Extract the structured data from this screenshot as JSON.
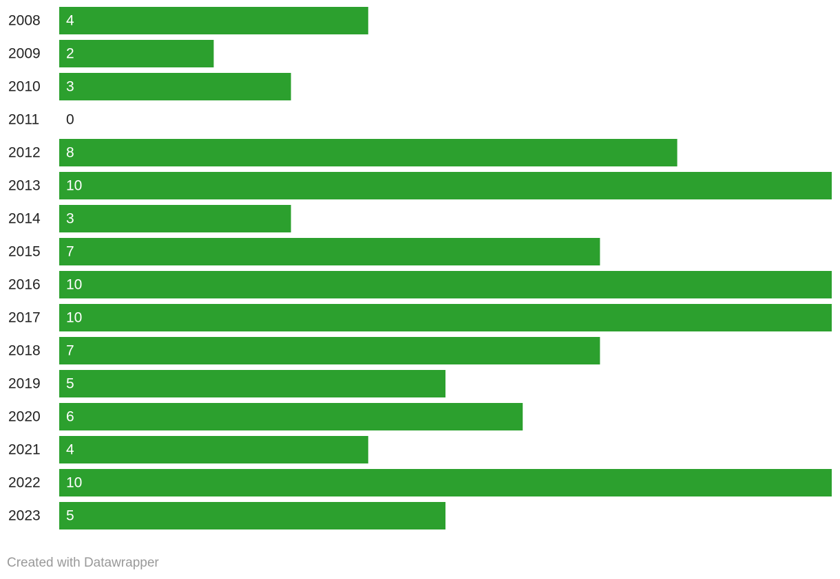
{
  "chart_data": {
    "type": "bar",
    "orientation": "horizontal",
    "categories": [
      "2008",
      "2009",
      "2010",
      "2011",
      "2012",
      "2013",
      "2014",
      "2015",
      "2016",
      "2017",
      "2018",
      "2019",
      "2020",
      "2021",
      "2022",
      "2023"
    ],
    "values": [
      4,
      2,
      3,
      0,
      8,
      10,
      3,
      7,
      10,
      10,
      7,
      5,
      6,
      4,
      10,
      5
    ],
    "color": "#2ca02e",
    "xlim": [
      0,
      10
    ],
    "credit": "Created with Datawrapper"
  }
}
